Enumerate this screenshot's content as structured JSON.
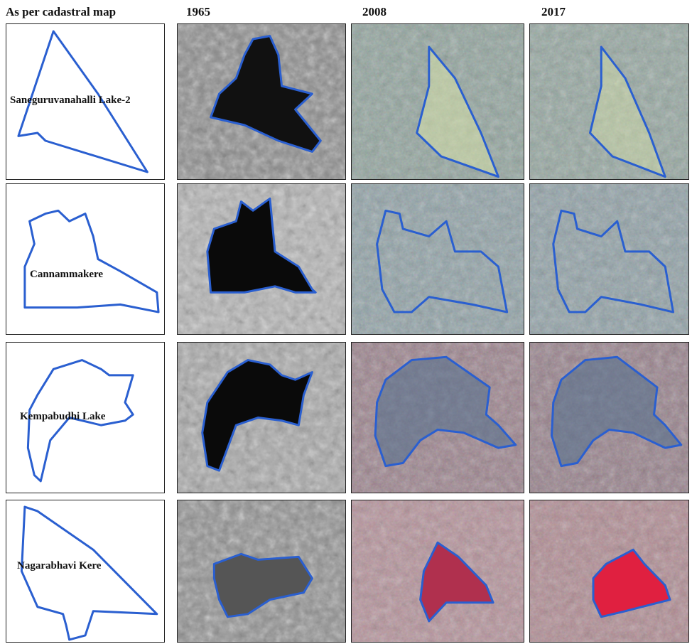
{
  "header": {
    "columns": [
      "As per cadastral map",
      "1965",
      "2008",
      "2017"
    ]
  },
  "rows": [
    {
      "label": "Saneguruvanahalli Lake-2"
    },
    {
      "label": "Cannammakere"
    },
    {
      "label": "Kempabudhi Lake"
    },
    {
      "label": "Nagarabhavi Kere"
    }
  ]
}
